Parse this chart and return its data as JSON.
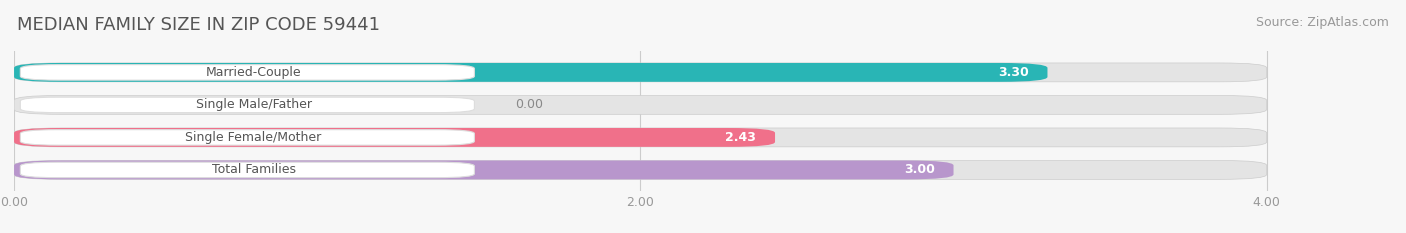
{
  "title": "MEDIAN FAMILY SIZE IN ZIP CODE 59441",
  "source": "Source: ZipAtlas.com",
  "categories": [
    "Married-Couple",
    "Single Male/Father",
    "Single Female/Mother",
    "Total Families"
  ],
  "values": [
    3.3,
    0.0,
    2.43,
    3.0
  ],
  "bar_colors": [
    "#29b5b5",
    "#a8bce8",
    "#f0708a",
    "#b896cc"
  ],
  "value_labels": [
    "3.30",
    "0.00",
    "2.43",
    "3.00"
  ],
  "xlim": [
    0,
    4.4
  ],
  "xdata_max": 4.0,
  "xticks": [
    0.0,
    2.0,
    4.0
  ],
  "xticklabels": [
    "0.00",
    "2.00",
    "4.00"
  ],
  "background_color": "#f7f7f7",
  "bar_background_color": "#e4e4e4",
  "title_fontsize": 13,
  "source_fontsize": 9,
  "label_fontsize": 9,
  "value_fontsize": 9,
  "bar_height": 0.58,
  "label_box_color": "#ffffff",
  "label_text_color": "#555555",
  "value_text_color": "#ffffff",
  "zero_value_text_color": "#888888"
}
